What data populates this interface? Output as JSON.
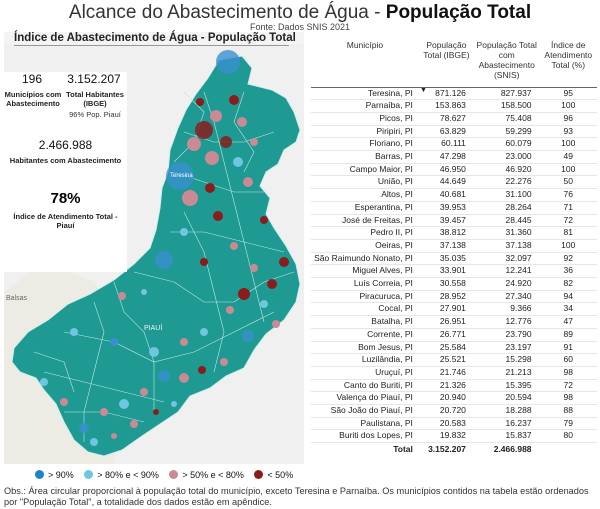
{
  "header": {
    "title_normal": "Alcance do Abastecimento de Água - ",
    "title_bold": "População Total",
    "source": "Fonte: Dados SNIS 2021"
  },
  "panel": {
    "title": "Índice de Abastecimento de Água - População Total",
    "kpis": {
      "municipios_value": "196",
      "municipios_label_1": "Municípios com",
      "municipios_label_2": "Abastecimento",
      "habitantes_value": "3.152.207",
      "habitantes_label_1": "Total Habitantes",
      "habitantes_label_2": "(IBGE)",
      "habitantes_sub": "96% Pop. Piauí",
      "abastecidos_value": "2.466.988",
      "abastecidos_label": "Habitantes com Abastecimento",
      "indice_value": "78%",
      "indice_label_1": "Índice de Atendimento Total -",
      "indice_label_2": "Piauí"
    },
    "map_labels": {
      "balsas": "Balsas",
      "piaui": "PIAUÍ",
      "teresina": "Teresina"
    },
    "colors": {
      "state_fill": "#1f9a93",
      "state_border": "#c9ecea",
      "dark_red": "#8a1c1c",
      "rose": "#c98a94",
      "light_blue": "#6fc6de",
      "blue": "#3a8fd0"
    }
  },
  "legend": [
    {
      "label": "> 90%",
      "color": "#1f84c7"
    },
    {
      "label": "> 80% e < 90%",
      "color": "#6fc6de"
    },
    {
      "label": "> 50% e < 80%",
      "color": "#c98a94"
    },
    {
      "label": "< 50%",
      "color": "#8a1c1c"
    }
  ],
  "table": {
    "headers": [
      "Município",
      "População Total (IBGE)",
      "População Total com Abastecimento (SNIS)",
      "Índice de Atendimento Total (%)"
    ],
    "rows": [
      [
        "Teresina, PI",
        "871.126",
        "827.937",
        "95"
      ],
      [
        "Parnaíba, PI",
        "153.863",
        "158.500",
        "100"
      ],
      [
        "Picos, PI",
        "78.627",
        "75.408",
        "96"
      ],
      [
        "Piripiri, PI",
        "63.829",
        "59.299",
        "93"
      ],
      [
        "Floriano, PI",
        "60.111",
        "60.079",
        "100"
      ],
      [
        "Barras, PI",
        "47.298",
        "23.000",
        "49"
      ],
      [
        "Campo Maior, PI",
        "46.950",
        "46.920",
        "100"
      ],
      [
        "União, PI",
        "44.649",
        "22.276",
        "50"
      ],
      [
        "Altos, PI",
        "40.681",
        "31.100",
        "76"
      ],
      [
        "Esperantina, PI",
        "39.953",
        "28.264",
        "71"
      ],
      [
        "José de Freitas, PI",
        "39.457",
        "28.445",
        "72"
      ],
      [
        "Pedro II, PI",
        "38.812",
        "31.360",
        "81"
      ],
      [
        "Oeiras, PI",
        "37.138",
        "37.138",
        "100"
      ],
      [
        "São Raimundo Nonato, PI",
        "35.035",
        "32.097",
        "92"
      ],
      [
        "Miguel Alves, PI",
        "33.901",
        "12.241",
        "36"
      ],
      [
        "Luís Correia, PI",
        "30.558",
        "24.920",
        "82"
      ],
      [
        "Piracuruca, PI",
        "28.952",
        "27.340",
        "94"
      ],
      [
        "Cocal, PI",
        "27.901",
        "9.366",
        "34"
      ],
      [
        "Batalha, PI",
        "26.951",
        "12.776",
        "47"
      ],
      [
        "Corrente, PI",
        "26.771",
        "23.790",
        "89"
      ],
      [
        "Bom Jesus, PI",
        "25.584",
        "23.197",
        "91"
      ],
      [
        "Luzilândia, PI",
        "25.521",
        "15.298",
        "60"
      ],
      [
        "Uruçuí, PI",
        "21.746",
        "21.213",
        "98"
      ],
      [
        "Canto do Buriti, PI",
        "21.326",
        "15.395",
        "72"
      ],
      [
        "Valença do Piauí, PI",
        "20.940",
        "20.594",
        "98"
      ],
      [
        "São João do Piauí, PI",
        "20.720",
        "18.288",
        "88"
      ],
      [
        "Paulistana, PI",
        "20.583",
        "16.237",
        "79"
      ],
      [
        "Buriti dos Lopes, PI",
        "19.832",
        "15.837",
        "80"
      ]
    ],
    "total": [
      "Total",
      "3.152.207",
      "2.466.988",
      ""
    ]
  },
  "footnote": "Obs.: Área circular proporcional à população total do município, exceto Teresina e Parnaíba. Os municípios contidos na tabela estão ordenados por \"População Total\", a totalidade dos dados estão em apêndice."
}
